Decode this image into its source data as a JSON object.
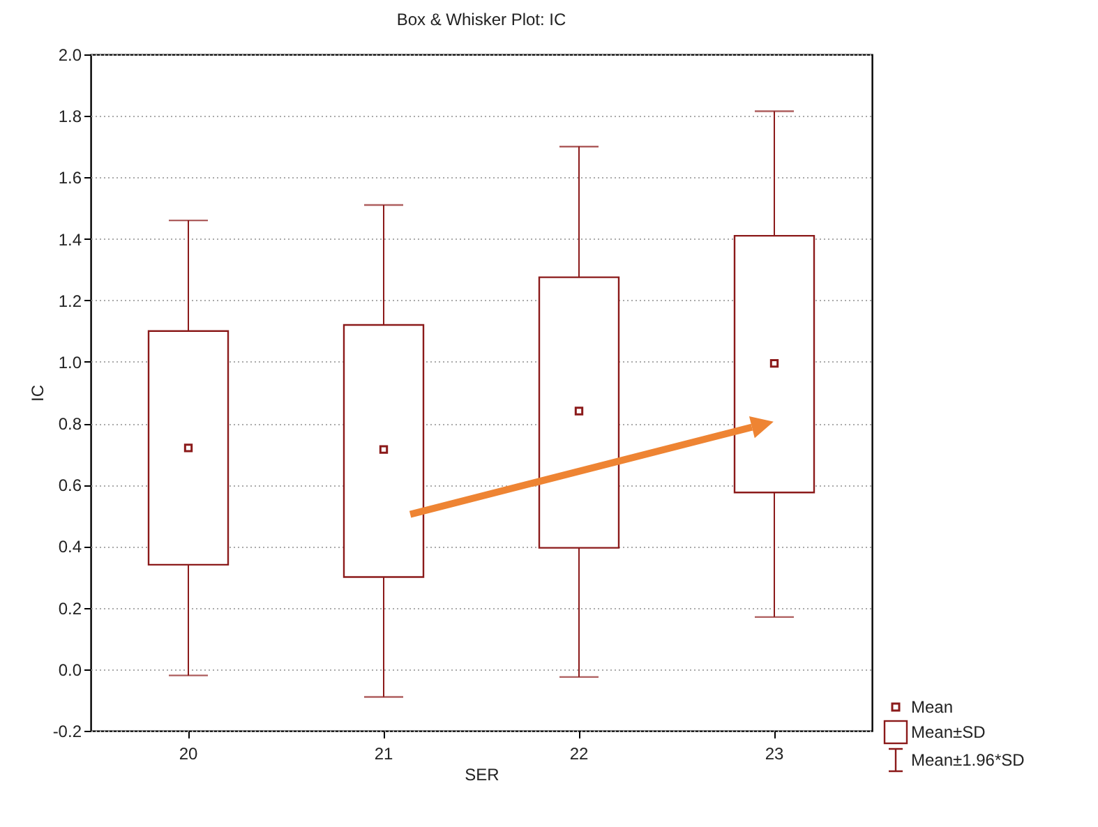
{
  "chart_data": {
    "type": "box",
    "title": "Box & Whisker Plot:      IC",
    "xlabel": "SER",
    "ylabel": "IC",
    "categories": [
      "20",
      "21",
      "22",
      "23"
    ],
    "series": [
      {
        "color": "#8b1a1a",
        "boxes": [
          {
            "low": -0.02,
            "q1": 0.34,
            "mean": 0.72,
            "q3": 1.1,
            "high": 1.46
          },
          {
            "low": -0.09,
            "q1": 0.3,
            "mean": 0.715,
            "q3": 1.12,
            "high": 1.51
          },
          {
            "low": -0.025,
            "q1": 0.395,
            "mean": 0.84,
            "q3": 1.275,
            "high": 1.7
          },
          {
            "low": 0.17,
            "q1": 0.575,
            "mean": 0.995,
            "q3": 1.41,
            "high": 1.815
          }
        ]
      }
    ],
    "ylim": [
      -0.2,
      2.0
    ],
    "yticks": [
      {
        "value": -0.2,
        "label": "-0.2"
      },
      {
        "value": 0,
        "label": "0.0"
      },
      {
        "value": 0.2,
        "label": "0.2"
      },
      {
        "value": 0.4,
        "label": "0.4"
      },
      {
        "value": 0.6,
        "label": "0.6"
      },
      {
        "value": 0.8,
        "label": "0.8"
      },
      {
        "value": 1,
        "label": "1.0"
      },
      {
        "value": 1.2,
        "label": "1.2"
      },
      {
        "value": 1.4,
        "label": "1.4"
      },
      {
        "value": 1.6,
        "label": "1.6"
      },
      {
        "value": 1.8,
        "label": "1.8"
      },
      {
        "value": 2,
        "label": "2.0"
      }
    ],
    "grid": "y",
    "line_style": "dotted",
    "marker": "square",
    "annotations": [
      "Mean",
      "Mean±SD",
      "Mean±1.96*SD"
    ]
  }
}
